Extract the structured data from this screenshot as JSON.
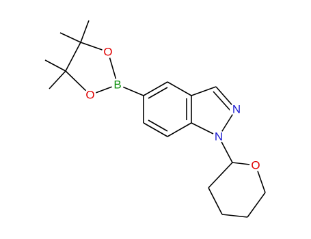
{
  "atoms": [
    {
      "label": "B"
    },
    {
      "label": "O"
    },
    {
      "label": "O"
    },
    {
      "label": "N"
    },
    {
      "label": "N"
    },
    {
      "label": "O"
    }
  ]
}
